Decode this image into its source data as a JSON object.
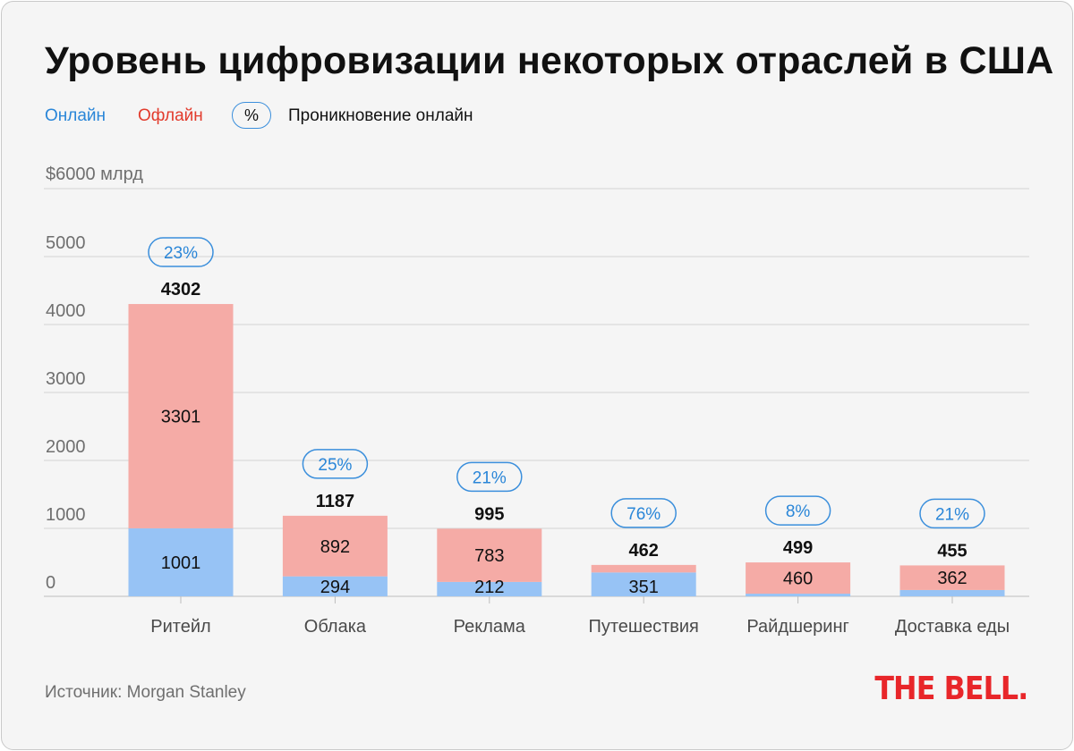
{
  "title": "Уровень цифровизации некоторых отраслей в США",
  "legend": {
    "online": "Онлайн",
    "offline": "Офлайн",
    "pill": "%",
    "penetration": "Проникновение онлайн"
  },
  "source": "Источник: Morgan Stanley",
  "logo": "THE BELL.",
  "colors": {
    "online": "#97c3f5",
    "offline": "#f5aba6",
    "pct_border": "#3b8fdc",
    "grid": "#d4d4d4"
  },
  "chart_data": {
    "type": "bar",
    "stacked": true,
    "unit_label": "$6000 млрд",
    "ylim": [
      0,
      6000
    ],
    "yticks": [
      0,
      1000,
      2000,
      3000,
      4000,
      5000
    ],
    "categories": [
      "Ритейл",
      "Облака",
      "Реклама",
      "Путешествия",
      "Райдшеринг",
      "Доставка еды"
    ],
    "series": [
      {
        "name": "Онлайн",
        "values": [
          1001,
          294,
          212,
          351,
          39,
          93
        ],
        "labels": [
          "1001",
          "294",
          "212",
          "351",
          "",
          ""
        ]
      },
      {
        "name": "Офлайн",
        "values": [
          3301,
          892,
          783,
          111,
          460,
          362
        ],
        "labels": [
          "3301",
          "892",
          "783",
          "",
          "460",
          "362"
        ]
      }
    ],
    "totals": [
      "4302",
      "1187",
      "995",
      "462",
      "499",
      "455"
    ],
    "penetration": [
      "23%",
      "25%",
      "21%",
      "76%",
      "8%",
      "21%"
    ]
  }
}
